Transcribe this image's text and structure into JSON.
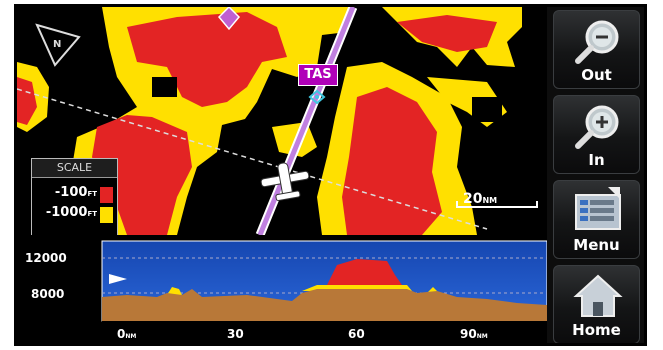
{
  "map": {
    "aircraft_label": "TAS",
    "range_label": "20",
    "range_unit": "NM"
  },
  "scale_legend": {
    "title": "SCALE",
    "levels": [
      {
        "label": "-100",
        "unit": "FT",
        "color": "#e32424"
      },
      {
        "label": "-1000",
        "unit": "FT",
        "color": "#ffe000"
      }
    ]
  },
  "profile": {
    "y_ticks": [
      "12000",
      "8000"
    ],
    "x_ticks": [
      {
        "label": "0",
        "unit": "NM"
      },
      {
        "label": "30",
        "unit": ""
      },
      {
        "label": "60",
        "unit": ""
      },
      {
        "label": "90",
        "unit": "NM"
      }
    ]
  },
  "buttons": [
    {
      "label": "Out",
      "icon": "zoom-out-icon"
    },
    {
      "label": "In",
      "icon": "zoom-in-icon"
    },
    {
      "label": "Menu",
      "icon": "menu-icon"
    },
    {
      "label": "Home",
      "icon": "home-icon"
    }
  ],
  "colors": {
    "terrain_red": "#e32424",
    "terrain_yellow": "#ffe000",
    "sky_blue": "#1e54c8",
    "ground_brown": "#b87838",
    "route_magenta": "#c080e0"
  }
}
